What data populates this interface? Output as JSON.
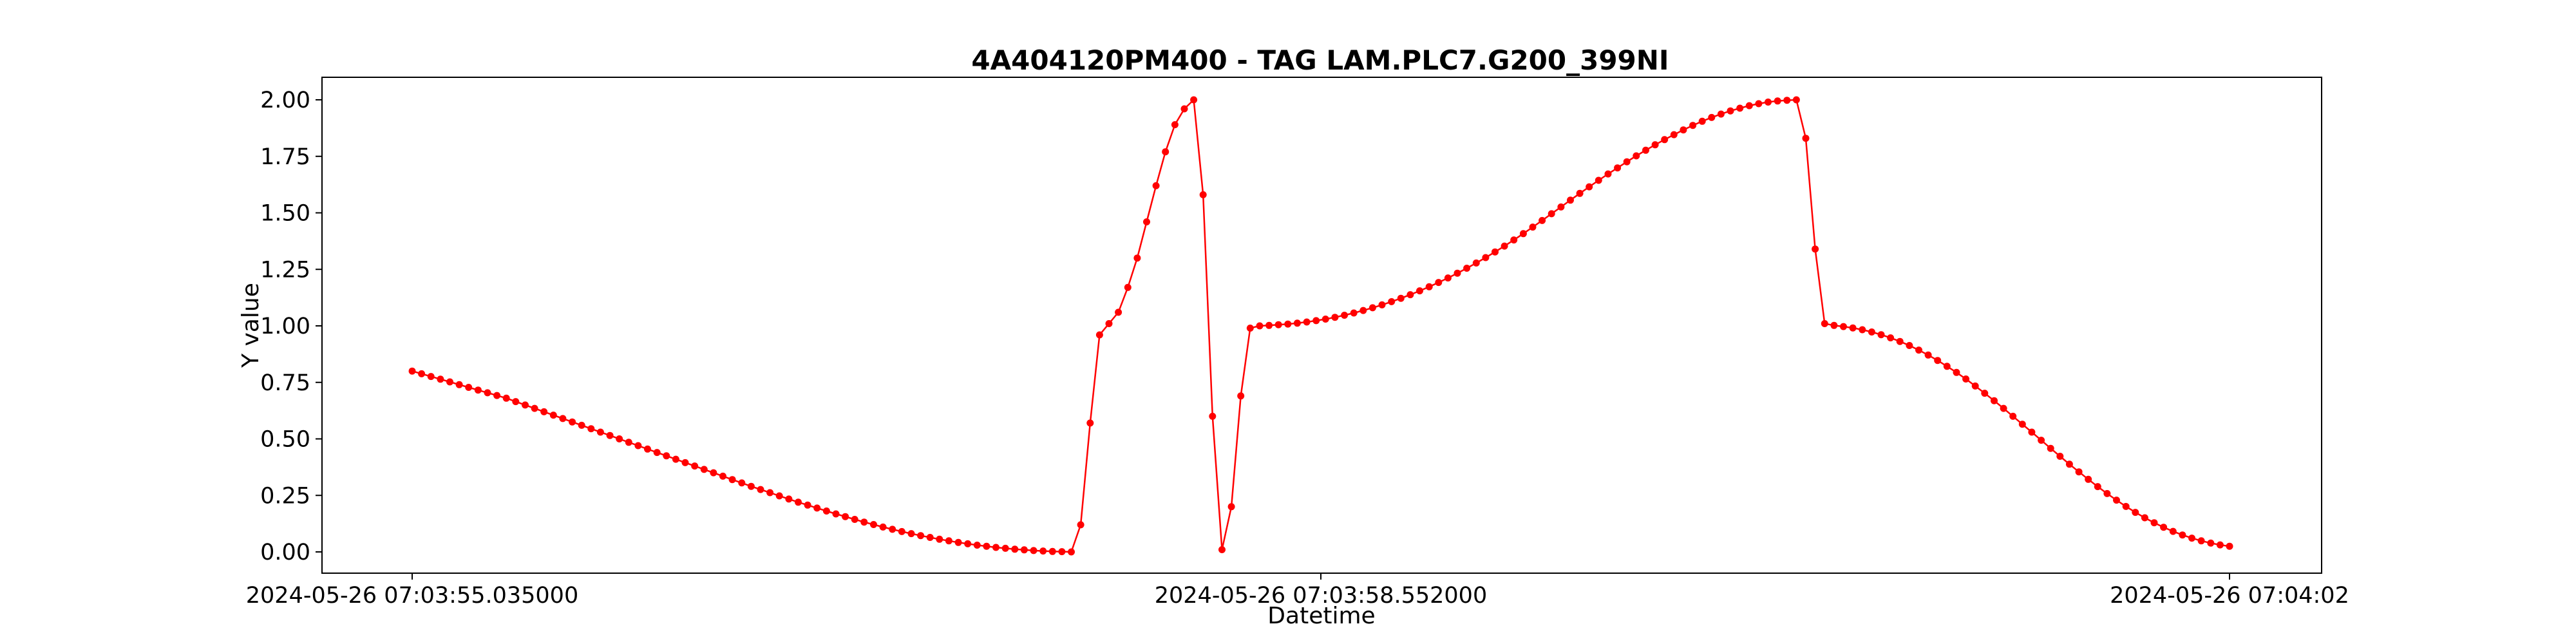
{
  "chart_data": {
    "type": "line",
    "title": "4A404120PM400 - TAG LAM.PLC7.G200_399NI",
    "xlabel": "Datetime",
    "ylabel": "Y value",
    "ylim": [
      -0.1,
      2.1
    ],
    "yticks": [
      "0.00",
      "0.25",
      "0.50",
      "0.75",
      "1.00",
      "1.25",
      "1.50",
      "1.75",
      "2.00"
    ],
    "xticks": [
      "2024-05-26 07:03:55.035000",
      "2024-05-26 07:03:58.552000",
      "2024-05-26 07:04:02"
    ],
    "x_range": [
      "2024-05-26 07:03:55.035000",
      "2024-05-26 07:04:02"
    ],
    "grid": false,
    "series": [
      {
        "color": "#ff0000",
        "marker": "dot",
        "values": [
          0.8,
          0.788,
          0.776,
          0.764,
          0.752,
          0.74,
          0.728,
          0.716,
          0.704,
          0.692,
          0.68,
          0.665,
          0.65,
          0.635,
          0.62,
          0.605,
          0.59,
          0.575,
          0.56,
          0.545,
          0.53,
          0.515,
          0.5,
          0.485,
          0.47,
          0.455,
          0.44,
          0.425,
          0.41,
          0.395,
          0.38,
          0.365,
          0.35,
          0.335,
          0.32,
          0.305,
          0.29,
          0.276,
          0.262,
          0.248,
          0.234,
          0.22,
          0.207,
          0.194,
          0.181,
          0.168,
          0.156,
          0.144,
          0.132,
          0.121,
          0.11,
          0.1,
          0.09,
          0.081,
          0.072,
          0.064,
          0.056,
          0.049,
          0.042,
          0.036,
          0.03,
          0.025,
          0.02,
          0.016,
          0.012,
          0.009,
          0.006,
          0.004,
          0.002,
          0.001,
          0.0,
          0.12,
          0.57,
          0.96,
          1.01,
          1.06,
          1.17,
          1.3,
          1.46,
          1.62,
          1.77,
          1.89,
          1.96,
          2.0,
          1.58,
          0.6,
          0.01,
          0.2,
          0.69,
          0.99,
          1.0,
          1.002,
          1.005,
          1.008,
          1.012,
          1.017,
          1.023,
          1.03,
          1.038,
          1.047,
          1.057,
          1.068,
          1.08,
          1.093,
          1.107,
          1.122,
          1.138,
          1.155,
          1.173,
          1.192,
          1.212,
          1.233,
          1.255,
          1.278,
          1.302,
          1.327,
          1.353,
          1.38,
          1.408,
          1.437,
          1.466,
          1.496,
          1.526,
          1.556,
          1.586,
          1.615,
          1.644,
          1.672,
          1.699,
          1.726,
          1.752,
          1.777,
          1.801,
          1.824,
          1.846,
          1.867,
          1.887,
          1.905,
          1.922,
          1.937,
          1.951,
          1.963,
          1.974,
          1.983,
          1.99,
          1.995,
          1.998,
          2.0,
          1.83,
          1.34,
          1.01,
          1.002,
          0.997,
          0.991,
          0.983,
          0.973,
          0.961,
          0.947,
          0.931,
          0.913,
          0.893,
          0.871,
          0.847,
          0.821,
          0.794,
          0.765,
          0.734,
          0.702,
          0.669,
          0.635,
          0.6,
          0.565,
          0.53,
          0.494,
          0.458,
          0.423,
          0.388,
          0.354,
          0.321,
          0.289,
          0.258,
          0.229,
          0.201,
          0.175,
          0.151,
          0.129,
          0.109,
          0.091,
          0.075,
          0.061,
          0.049,
          0.039,
          0.031,
          0.025
        ]
      }
    ]
  }
}
